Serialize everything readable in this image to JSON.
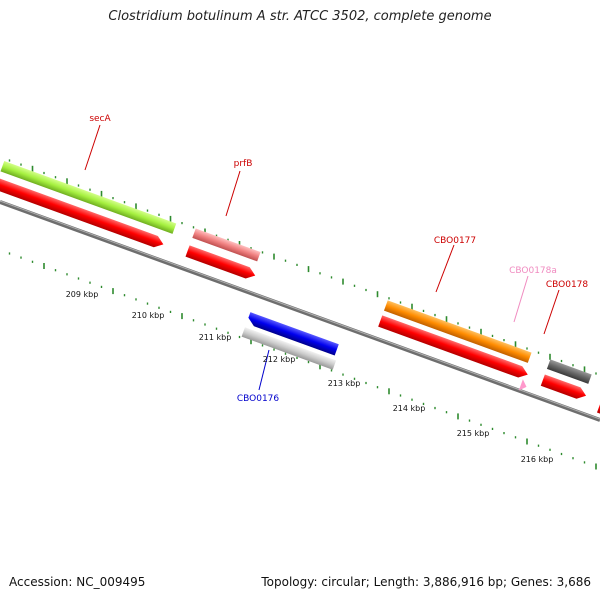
{
  "title": "Clostridium botulinum A str. ATCC 3502, complete genome",
  "accession": "Accession: NC_009495",
  "topology": "Topology: circular; Length: 3,886,916 bp; Genes: 3,686",
  "axis_labels": [
    "209 kbp",
    "210 kbp",
    "211 kbp",
    "212 kbp",
    "213 kbp",
    "214 kbp",
    "215 kbp",
    "216 kbp"
  ],
  "genes": [
    {
      "name": "secA",
      "color": "#cc0000"
    },
    {
      "name": "prfB",
      "color": "#cc0000"
    },
    {
      "name": "CBO0176",
      "color": "#0000cc"
    },
    {
      "name": "CBO0177",
      "color": "#cc0000"
    },
    {
      "name": "CBO0178a",
      "color": "#f08bc0"
    },
    {
      "name": "CBO0178",
      "color": "#cc0000"
    }
  ],
  "colors": {
    "tick_green": "#2e8b2e",
    "backbone": "#808080",
    "cds_red": "#ff0000",
    "secA_green": "#a6f040",
    "prfB_pink": "#f08080",
    "CBO0176_blue": "#0000ee",
    "CBO0176_grey": "#cccccc",
    "CBO0177_orange": "#ff8c00",
    "CBO0178a_pink": "#ff99cc",
    "CBO0178_dark": "#666666"
  }
}
